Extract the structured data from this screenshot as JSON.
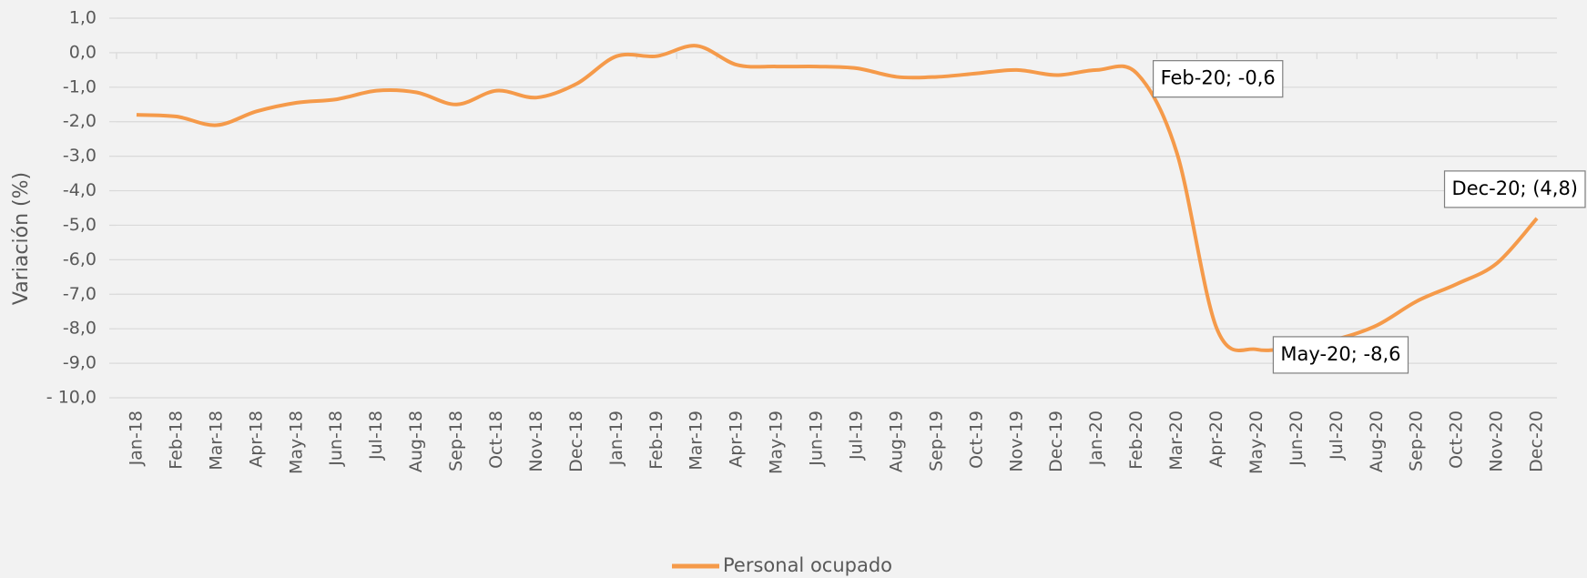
{
  "chart_data": {
    "type": "line",
    "y_label": "Variación (%)",
    "categories": [
      "Jan-18",
      "Feb-18",
      "Mar-18",
      "Apr-18",
      "May-18",
      "Jun-18",
      "Jul-18",
      "Aug-18",
      "Sep-18",
      "Oct-18",
      "Nov-18",
      "Dec-18",
      "Jan-19",
      "Feb-19",
      "Mar-19",
      "Apr-19",
      "May-19",
      "Jun-19",
      "Jul-19",
      "Aug-19",
      "Sep-19",
      "Oct-19",
      "Nov-19",
      "Dec-19",
      "Jan-20",
      "Feb-20",
      "Mar-20",
      "Apr-20",
      "May-20",
      "Jun-20",
      "Jul-20",
      "Aug-20",
      "Sep-20",
      "Oct-20",
      "Nov-20",
      "Dec-20"
    ],
    "series": [
      {
        "name": "Personal ocupado",
        "color": "#f59a4a",
        "values": [
          -1.8,
          -1.85,
          -2.1,
          -1.7,
          -1.45,
          -1.35,
          -1.1,
          -1.15,
          -1.5,
          -1.1,
          -1.3,
          -0.9,
          -0.1,
          -0.1,
          0.2,
          -0.35,
          -0.4,
          -0.4,
          -0.45,
          -0.7,
          -0.7,
          -0.6,
          -0.5,
          -0.65,
          -0.5,
          -0.6,
          -2.9,
          -8.0,
          -8.6,
          -8.5,
          -8.3,
          -7.9,
          -7.2,
          -6.7,
          -6.1,
          -4.8
        ],
        "value_labels": [
          null,
          null,
          null,
          null,
          null,
          null,
          null,
          null,
          null,
          null,
          null,
          null,
          null,
          null,
          null,
          null,
          null,
          null,
          null,
          null,
          null,
          null,
          null,
          null,
          null,
          "Feb-20; -0,6",
          null,
          null,
          "May-20; -8,6",
          null,
          null,
          null,
          null,
          null,
          null,
          "Dec-20;  (4,8)"
        ]
      }
    ],
    "ylim": [
      -10,
      1
    ],
    "yticks": [
      {
        "value": 1,
        "label": "1,0"
      },
      {
        "value": 0,
        "label": "0,0"
      },
      {
        "value": -1,
        "label": "-1,0"
      },
      {
        "value": -2,
        "label": "-2,0"
      },
      {
        "value": -3,
        "label": "-3,0"
      },
      {
        "value": -4,
        "label": "-4,0"
      },
      {
        "value": -5,
        "label": "-5,0"
      },
      {
        "value": -6,
        "label": "-6,0"
      },
      {
        "value": -7,
        "label": "-7,0"
      },
      {
        "value": -8,
        "label": "-8,0"
      },
      {
        "value": -9,
        "label": "-9,0"
      },
      {
        "value": -10,
        "label": "- 10,0"
      }
    ],
    "grid": true,
    "legend": "bottom"
  }
}
